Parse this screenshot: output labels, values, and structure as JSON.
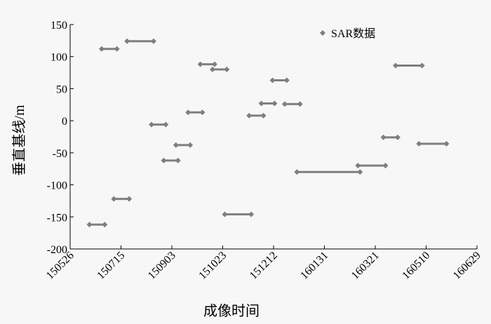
{
  "chart_data": {
    "type": "segments",
    "x_label": "成像时间",
    "y_label": "垂直基线/m",
    "xlim": [
      "150526",
      "160629"
    ],
    "xticks": [
      "150526",
      "150715",
      "150903",
      "151023",
      "151212",
      "160131",
      "160321",
      "160510",
      "160629"
    ],
    "ylim": [
      -200,
      150
    ],
    "yticks": [
      -200,
      -150,
      -100,
      -50,
      0,
      50,
      100,
      150
    ],
    "legend": "top-right",
    "series": [
      {
        "name": "SAR数据",
        "color": "#7f7f7f",
        "x_start": [
          "150614",
          "150626",
          "150708",
          "150721",
          "150814",
          "150826",
          "150907",
          "150919",
          "151001",
          "151013",
          "151025",
          "151118",
          "151130",
          "151211",
          "151223",
          "160104",
          "160304",
          "160329",
          "160410",
          "160503"
        ],
        "x_end": [
          "150629",
          "150711",
          "150723",
          "150816",
          "150828",
          "150909",
          "150921",
          "151003",
          "151015",
          "151027",
          "151120",
          "151202",
          "151213",
          "151225",
          "160107",
          "160306",
          "160331",
          "160412",
          "160506",
          "160530"
        ],
        "values": [
          -162,
          112,
          -122,
          124,
          -6,
          -62,
          -38,
          13,
          88,
          80,
          -146,
          8,
          27,
          63,
          26,
          -80,
          -70,
          -26,
          86,
          -36
        ]
      }
    ]
  }
}
